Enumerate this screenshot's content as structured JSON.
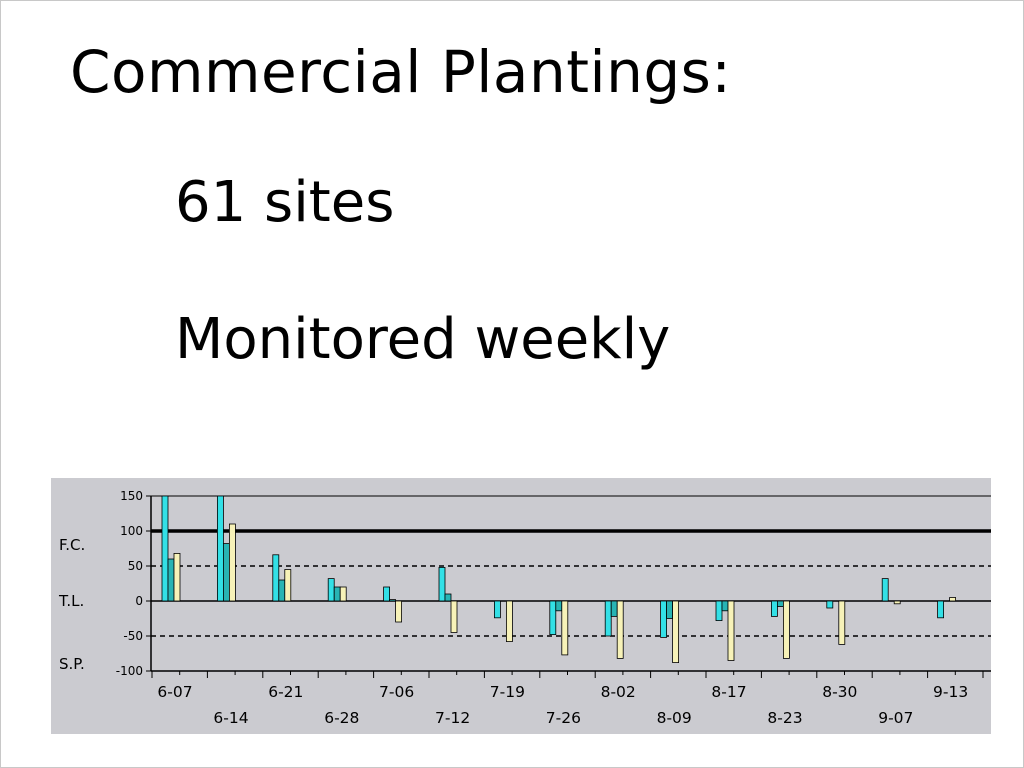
{
  "slide": {
    "title": "Commercial Plantings:",
    "bullets": [
      "61 sites",
      "Monitored weekly"
    ]
  },
  "chart_data": {
    "type": "bar",
    "ylim": [
      -100,
      150
    ],
    "yticks": [
      "150",
      "100",
      "50",
      "0",
      "-50",
      "-100"
    ],
    "ytick_values": [
      150,
      100,
      50,
      0,
      -50,
      -100
    ],
    "band_labels": [
      {
        "label": "F.C.",
        "y": 80
      },
      {
        "label": "T.L.",
        "y": 0
      },
      {
        "label": "S.P.",
        "y": -90
      }
    ],
    "reference_lines": [
      {
        "y": 100,
        "style": "solid-thick"
      },
      {
        "y": 50,
        "style": "dashed"
      },
      {
        "y": -50,
        "style": "dashed"
      }
    ],
    "x_labels_top": [
      "6-07",
      "6-21",
      "7-06",
      "7-19",
      "8-02",
      "8-17",
      "8-30",
      "9-13"
    ],
    "x_labels_bottom": [
      "6-14",
      "6-28",
      "7-12",
      "7-26",
      "8-09",
      "8-23",
      "9-07"
    ],
    "series": [
      {
        "color": "#33e0e6",
        "values": [
          150,
          150,
          66,
          32,
          20,
          48,
          -24,
          -48,
          -50,
          -52,
          -28,
          -22,
          -10,
          32,
          -24
        ]
      },
      {
        "color": "#28b4b4",
        "values": [
          60,
          82,
          30,
          20,
          2,
          10,
          0,
          -14,
          -22,
          -25,
          -14,
          -8,
          0,
          0,
          0
        ]
      },
      {
        "color": "#f7f2b8",
        "values": [
          68,
          110,
          45,
          20,
          -30,
          -45,
          -58,
          -77,
          -82,
          -88,
          -85,
          -82,
          -62,
          -4,
          5
        ]
      }
    ],
    "colors": {
      "background": "#cbcbd0",
      "axis": "#000000",
      "bar_outline": "#000000"
    },
    "grid": false
  }
}
